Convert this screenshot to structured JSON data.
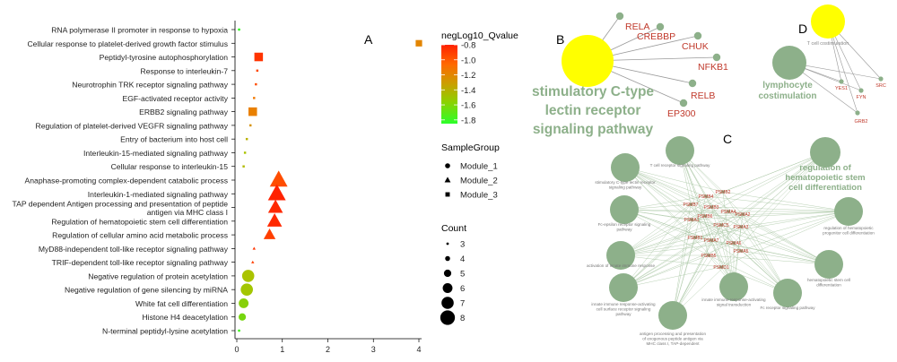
{
  "panel_labels": {
    "a": "A",
    "b": "B",
    "c": "C",
    "d": "D"
  },
  "chart_data": {
    "type": "scatter",
    "categories": [
      "RNA polymerase II promoter in response to hypoxia",
      "Cellular response to platelet-derived growth factor stimulus",
      "Peptidyl-tyrosine autophosphorylation",
      "Response to interleukin-7",
      "Neurotrophin TRK receptor signaling pathway",
      "EGF-activated receptor activity",
      "ERBB2 signaling pathway",
      "Regulation of platelet-derived VEGFR signaling pathway",
      "Entry of bacterium into host cell",
      "Interleukin-15-mediated signaling pathway",
      "Cellular response to interleukin-15",
      "Anaphase-promoting complex-dependent catabolic process",
      "Interleukin-1-mediated signaling pathway",
      "TAP dependent Antigen processing and presentation of peptide antigen via MHC class I",
      "Regulation of hematopoietic stem cell differentiation",
      "Regulation of cellular amino acid metabolic process",
      "MyD88-independent toll-like receptor signaling pathway",
      "TRIF-dependent toll-like receptor signaling pathway",
      "Negative regulation of protein acetylation",
      "Negative regulation of gene silencing by miRNA",
      "White fat cell differentiation",
      "Histone H4 deacetylation",
      "N-terminal peptidyl-lysine acetylation"
    ],
    "points": [
      {
        "x": 0.05,
        "count": 3,
        "q": -1.8,
        "group": "Module_1"
      },
      {
        "x": 4.0,
        "count": 5,
        "q": -1.1,
        "group": "Module_3"
      },
      {
        "x": 0.48,
        "count": 6,
        "q": -0.85,
        "group": "Module_3"
      },
      {
        "x": 0.45,
        "count": 3,
        "q": -0.9,
        "group": "Module_3"
      },
      {
        "x": 0.42,
        "count": 3,
        "q": -0.92,
        "group": "Module_3"
      },
      {
        "x": 0.38,
        "count": 3,
        "q": -1.05,
        "group": "Module_3"
      },
      {
        "x": 0.35,
        "count": 6,
        "q": -1.08,
        "group": "Module_3"
      },
      {
        "x": 0.3,
        "count": 3,
        "q": -1.15,
        "group": "Module_3"
      },
      {
        "x": 0.22,
        "count": 3,
        "q": -1.3,
        "group": "Module_3"
      },
      {
        "x": 0.18,
        "count": 3,
        "q": -1.4,
        "group": "Module_3"
      },
      {
        "x": 0.15,
        "count": 3,
        "q": -1.35,
        "group": "Module_3"
      },
      {
        "x": 0.92,
        "count": 8,
        "q": -0.92,
        "group": "Module_2"
      },
      {
        "x": 0.88,
        "count": 8,
        "q": -0.8,
        "group": "Module_2"
      },
      {
        "x": 0.85,
        "count": 7,
        "q": -0.82,
        "group": "Module_2"
      },
      {
        "x": 0.83,
        "count": 7,
        "q": -0.82,
        "group": "Module_2"
      },
      {
        "x": 0.72,
        "count": 6,
        "q": -0.88,
        "group": "Module_2"
      },
      {
        "x": 0.38,
        "count": 3,
        "q": -0.85,
        "group": "Module_2"
      },
      {
        "x": 0.35,
        "count": 3,
        "q": -0.88,
        "group": "Module_2"
      },
      {
        "x": 0.25,
        "count": 7,
        "q": -1.4,
        "group": "Module_1"
      },
      {
        "x": 0.22,
        "count": 7,
        "q": -1.42,
        "group": "Module_1"
      },
      {
        "x": 0.15,
        "count": 6,
        "q": -1.5,
        "group": "Module_1"
      },
      {
        "x": 0.12,
        "count": 5,
        "q": -1.55,
        "group": "Module_1"
      },
      {
        "x": 0.05,
        "count": 3,
        "q": -1.75,
        "group": "Module_1"
      }
    ],
    "x_ticks": [
      "0",
      "1",
      "2",
      "3",
      "4"
    ],
    "xlim": [
      -0.15,
      4.1
    ],
    "color_legend": {
      "title": "negLog10_Qvalue",
      "ticks": [
        "-0.8",
        "-1.0",
        "-1.2",
        "-1.4",
        "-1.6",
        "-1.8"
      ],
      "range": [
        -0.8,
        -1.85
      ],
      "colors": [
        "#ff2200",
        "#ff6a00",
        "#c8a000",
        "#a3c000",
        "#4fe020",
        "#2bff2b"
      ]
    },
    "shape_legend": {
      "title": "SampleGroup",
      "items": [
        "Module_1",
        "Module_2",
        "Module_3"
      ]
    },
    "size_legend": {
      "title": "Count",
      "items": [
        "3",
        "4",
        "5",
        "6",
        "7",
        "8"
      ]
    }
  },
  "network_b": {
    "hub": "stimulatory C-type lectin receptor signaling pathway",
    "hub_lines": [
      "stimulatory C-type",
      "lectin receptor",
      "signaling pathway"
    ],
    "genes": [
      "RELA",
      "CREBBP",
      "CHUK",
      "NFKB1",
      "RELB",
      "EP300"
    ]
  },
  "network_d": {
    "hub_yellow_label": "T cell costimulation",
    "hub_green_lines": [
      "lymphocyte",
      "costimulation"
    ],
    "genes": [
      "YES1",
      "FYN",
      "SRC",
      "GRB2"
    ]
  },
  "network_c": {
    "terms": [
      "T cell receptor signaling pathway",
      "regulation of hematopoietic stem cell differentiation",
      "stimulatory C-type lectin receptor signaling pathway",
      "regulation of hematopoietic progenitor cell differentiation",
      "Fc-epsilon receptor signaling pathway",
      "activation of innate immune response",
      "hematopoietic stem cell differentiation",
      "innate immune response-activating cell surface receptor signaling pathway",
      "Fc receptor signaling pathway",
      "antigen processing and presentation of exogenous peptide antigen via MHC class I, TAP-dependent",
      "innate immune response-activating signal transduction"
    ],
    "highlight_lines": [
      "regulation of",
      "hematopoietic stem",
      "cell differentiation"
    ],
    "genes": [
      "PSMB2",
      "PSMB4",
      "PSMB7",
      "PSMB3",
      "PSMA4",
      "PSMA2",
      "PSMB6",
      "PSMA1",
      "PSMC5",
      "PSMA3",
      "PSMB1",
      "PSMA7",
      "PSMA6",
      "PSMA5",
      "PSMB5",
      "PSMD1"
    ]
  }
}
